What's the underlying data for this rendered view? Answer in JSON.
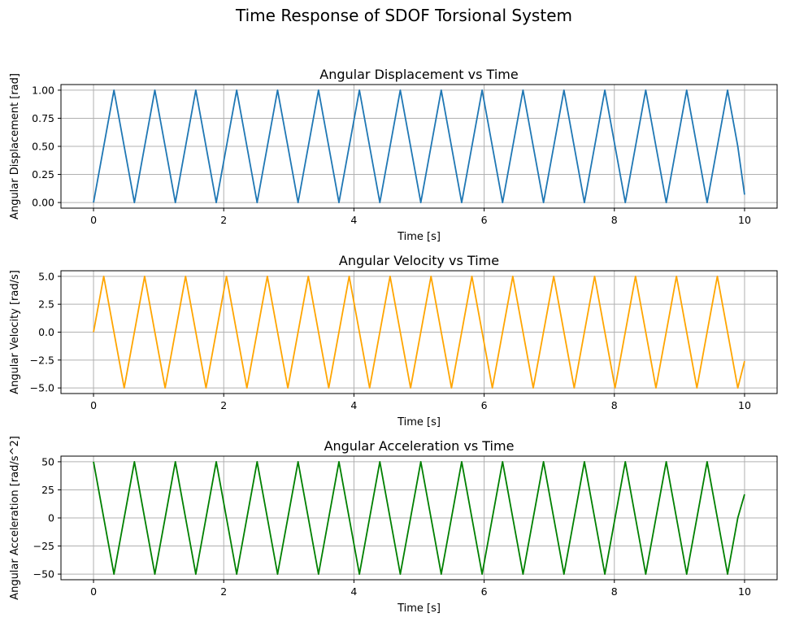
{
  "figure": {
    "title": "Time Response of SDOF Torsional System"
  },
  "chart_data": [
    {
      "type": "line",
      "title": "Angular Displacement vs Time",
      "xlabel": "Time [s]",
      "ylabel": "Angular Displacement [rad]",
      "xlim": [
        -0.5,
        10.5
      ],
      "ylim": [
        -0.05,
        1.05
      ],
      "xticks": [
        0,
        2,
        4,
        6,
        8,
        10
      ],
      "xtick_labels": [
        "0",
        "2",
        "4",
        "6",
        "8",
        "10"
      ],
      "yticks": [
        0.0,
        0.25,
        0.5,
        0.75,
        1.0
      ],
      "ytick_labels": [
        "0.00",
        "0.25",
        "0.50",
        "0.75",
        "1.00"
      ],
      "grid": true,
      "color": "#1f77b4",
      "series": [
        {
          "x": [
            0.0,
            0.157,
            0.314,
            0.471,
            0.628,
            0.785,
            0.942,
            1.1,
            1.257,
            1.414,
            1.571,
            1.728,
            1.885,
            2.042,
            2.199,
            2.356,
            2.513,
            2.67,
            2.827,
            2.985,
            3.142,
            3.299,
            3.456,
            3.613,
            3.77,
            3.927,
            4.084,
            4.241,
            4.398,
            4.555,
            4.712,
            4.87,
            5.027,
            5.184,
            5.341,
            5.498,
            5.655,
            5.812,
            5.969,
            6.126,
            6.283,
            6.44,
            6.597,
            6.754,
            6.912,
            7.069,
            7.226,
            7.383,
            7.54,
            7.697,
            7.854,
            8.011,
            8.168,
            8.325,
            8.482,
            8.639,
            8.797,
            8.954,
            9.111,
            9.268,
            9.425,
            9.582,
            9.739,
            9.896,
            10.0
          ],
          "y": [
            0.0,
            0.5,
            1.0,
            0.5,
            0.0,
            0.5,
            1.0,
            0.5,
            0.0,
            0.5,
            1.0,
            0.5,
            0.0,
            0.5,
            1.0,
            0.5,
            0.0,
            0.5,
            1.0,
            0.5,
            0.0,
            0.5,
            1.0,
            0.5,
            0.0,
            0.5,
            1.0,
            0.5,
            0.0,
            0.5,
            1.0,
            0.5,
            0.0,
            0.5,
            1.0,
            0.5,
            0.0,
            0.5,
            1.0,
            0.5,
            0.0,
            0.5,
            1.0,
            0.5,
            0.0,
            0.5,
            1.0,
            0.5,
            0.0,
            0.5,
            1.0,
            0.5,
            0.0,
            0.5,
            1.0,
            0.5,
            0.0,
            0.5,
            1.0,
            0.5,
            0.0,
            0.5,
            1.0,
            0.5,
            0.07
          ]
        }
      ]
    },
    {
      "type": "line",
      "title": "Angular Velocity vs Time",
      "xlabel": "Time [s]",
      "ylabel": "Angular Velocity [rad/s]",
      "xlim": [
        -0.5,
        10.5
      ],
      "ylim": [
        -5.5,
        5.5
      ],
      "xticks": [
        0,
        2,
        4,
        6,
        8,
        10
      ],
      "xtick_labels": [
        "0",
        "2",
        "4",
        "6",
        "8",
        "10"
      ],
      "yticks": [
        -5.0,
        -2.5,
        0.0,
        2.5,
        5.0
      ],
      "ytick_labels": [
        "−5.0",
        "−2.5",
        "0.0",
        "2.5",
        "5.0"
      ],
      "grid": true,
      "color": "#ffa500",
      "series": [
        {
          "x": [
            0.0,
            0.157,
            0.314,
            0.471,
            0.628,
            0.785,
            0.942,
            1.1,
            1.257,
            1.414,
            1.571,
            1.728,
            1.885,
            2.042,
            2.199,
            2.356,
            2.513,
            2.67,
            2.827,
            2.985,
            3.142,
            3.299,
            3.456,
            3.613,
            3.77,
            3.927,
            4.084,
            4.241,
            4.398,
            4.555,
            4.712,
            4.87,
            5.027,
            5.184,
            5.341,
            5.498,
            5.655,
            5.812,
            5.969,
            6.126,
            6.283,
            6.44,
            6.597,
            6.754,
            6.912,
            7.069,
            7.226,
            7.383,
            7.54,
            7.697,
            7.854,
            8.011,
            8.168,
            8.325,
            8.482,
            8.639,
            8.797,
            8.954,
            9.111,
            9.268,
            9.425,
            9.582,
            9.739,
            9.896,
            10.0
          ],
          "y": [
            0.0,
            5.0,
            0.0,
            -5.0,
            0.0,
            5.0,
            0.0,
            -5.0,
            0.0,
            5.0,
            0.0,
            -5.0,
            0.0,
            5.0,
            0.0,
            -5.0,
            0.0,
            5.0,
            0.0,
            -5.0,
            0.0,
            5.0,
            0.0,
            -5.0,
            0.0,
            5.0,
            0.0,
            -5.0,
            0.0,
            5.0,
            0.0,
            -5.0,
            0.0,
            5.0,
            0.0,
            -5.0,
            0.0,
            5.0,
            0.0,
            -5.0,
            0.0,
            5.0,
            0.0,
            -5.0,
            0.0,
            5.0,
            0.0,
            -5.0,
            0.0,
            5.0,
            0.0,
            -5.0,
            0.0,
            5.0,
            0.0,
            -5.0,
            0.0,
            5.0,
            0.0,
            -5.0,
            0.0,
            5.0,
            0.0,
            -5.0,
            -2.6
          ]
        }
      ]
    },
    {
      "type": "line",
      "title": "Angular Acceleration vs Time",
      "xlabel": "Time [s]",
      "ylabel": "Angular Acceleration [rad/s^2]",
      "xlim": [
        -0.5,
        10.5
      ],
      "ylim": [
        -55,
        55
      ],
      "xticks": [
        0,
        2,
        4,
        6,
        8,
        10
      ],
      "xtick_labels": [
        "0",
        "2",
        "4",
        "6",
        "8",
        "10"
      ],
      "yticks": [
        -50,
        -25,
        0,
        25,
        50
      ],
      "ytick_labels": [
        "−50",
        "−25",
        "0",
        "25",
        "50"
      ],
      "grid": true,
      "color": "#008000",
      "series": [
        {
          "x": [
            0.0,
            0.157,
            0.314,
            0.471,
            0.628,
            0.785,
            0.942,
            1.1,
            1.257,
            1.414,
            1.571,
            1.728,
            1.885,
            2.042,
            2.199,
            2.356,
            2.513,
            2.67,
            2.827,
            2.985,
            3.142,
            3.299,
            3.456,
            3.613,
            3.77,
            3.927,
            4.084,
            4.241,
            4.398,
            4.555,
            4.712,
            4.87,
            5.027,
            5.184,
            5.341,
            5.498,
            5.655,
            5.812,
            5.969,
            6.126,
            6.283,
            6.44,
            6.597,
            6.754,
            6.912,
            7.069,
            7.226,
            7.383,
            7.54,
            7.697,
            7.854,
            8.011,
            8.168,
            8.325,
            8.482,
            8.639,
            8.797,
            8.954,
            9.111,
            9.268,
            9.425,
            9.582,
            9.739,
            9.896,
            10.0
          ],
          "y": [
            50,
            0,
            -50,
            0,
            50,
            0,
            -50,
            0,
            50,
            0,
            -50,
            0,
            50,
            0,
            -50,
            0,
            50,
            0,
            -50,
            0,
            50,
            0,
            -50,
            0,
            50,
            0,
            -50,
            0,
            50,
            0,
            -50,
            0,
            50,
            0,
            -50,
            0,
            50,
            0,
            -50,
            0,
            50,
            0,
            -50,
            0,
            50,
            0,
            -50,
            0,
            50,
            0,
            -50,
            0,
            50,
            0,
            -50,
            0,
            50,
            0,
            -50,
            0,
            50,
            0,
            -50,
            0,
            21
          ]
        }
      ]
    }
  ]
}
